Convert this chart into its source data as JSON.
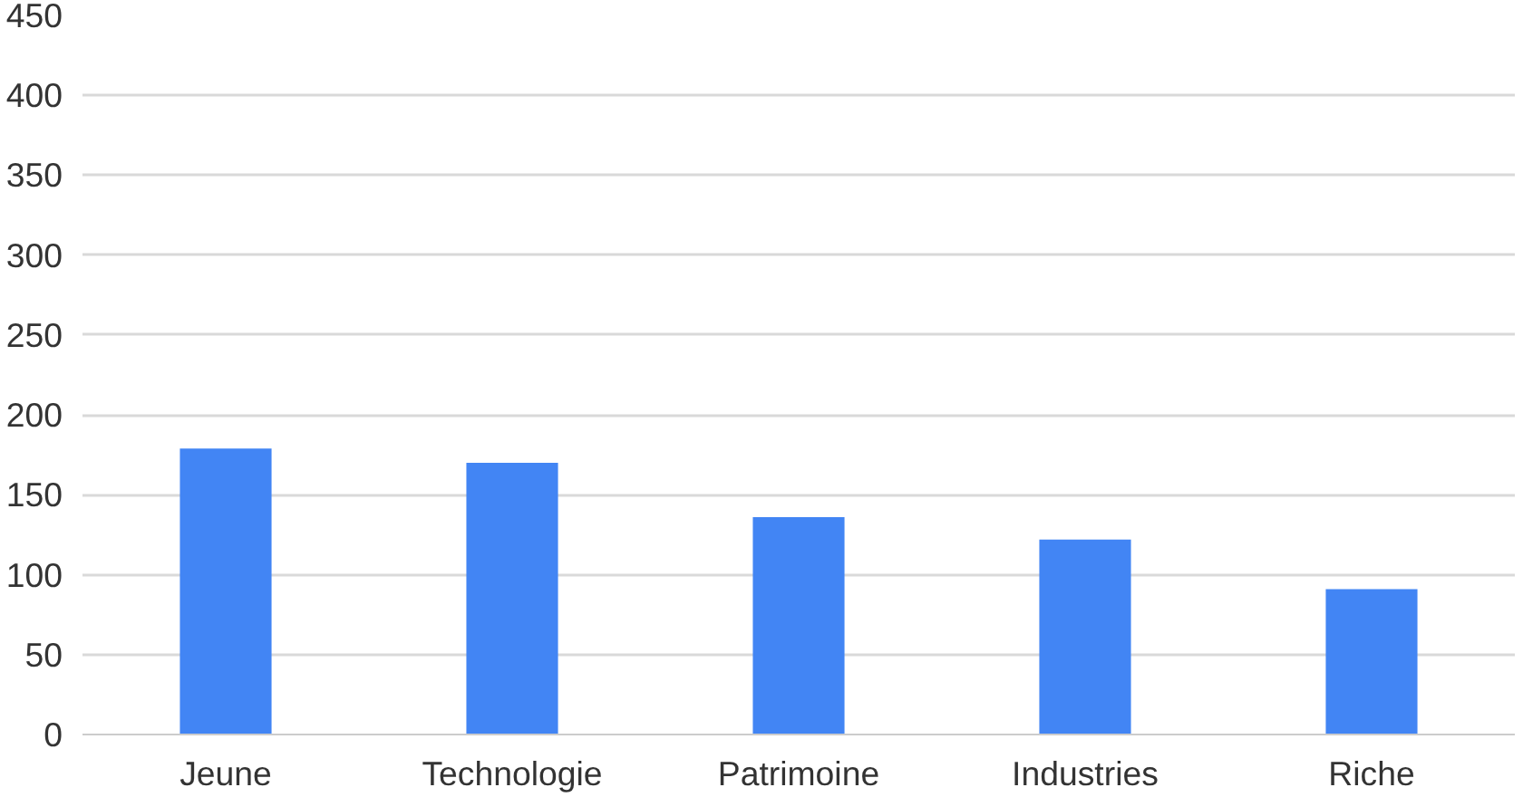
{
  "chart_data": {
    "type": "bar",
    "categories": [
      "Jeune",
      "Technologie",
      "Patrimoine",
      "Industries",
      "Riche"
    ],
    "values": [
      179,
      170,
      136,
      122,
      91
    ],
    "color": "#4285f4",
    "ylim": [
      0,
      450
    ],
    "yticks": [
      0,
      50,
      100,
      150,
      200,
      250,
      300,
      350,
      400,
      450
    ],
    "grid": "y"
  }
}
